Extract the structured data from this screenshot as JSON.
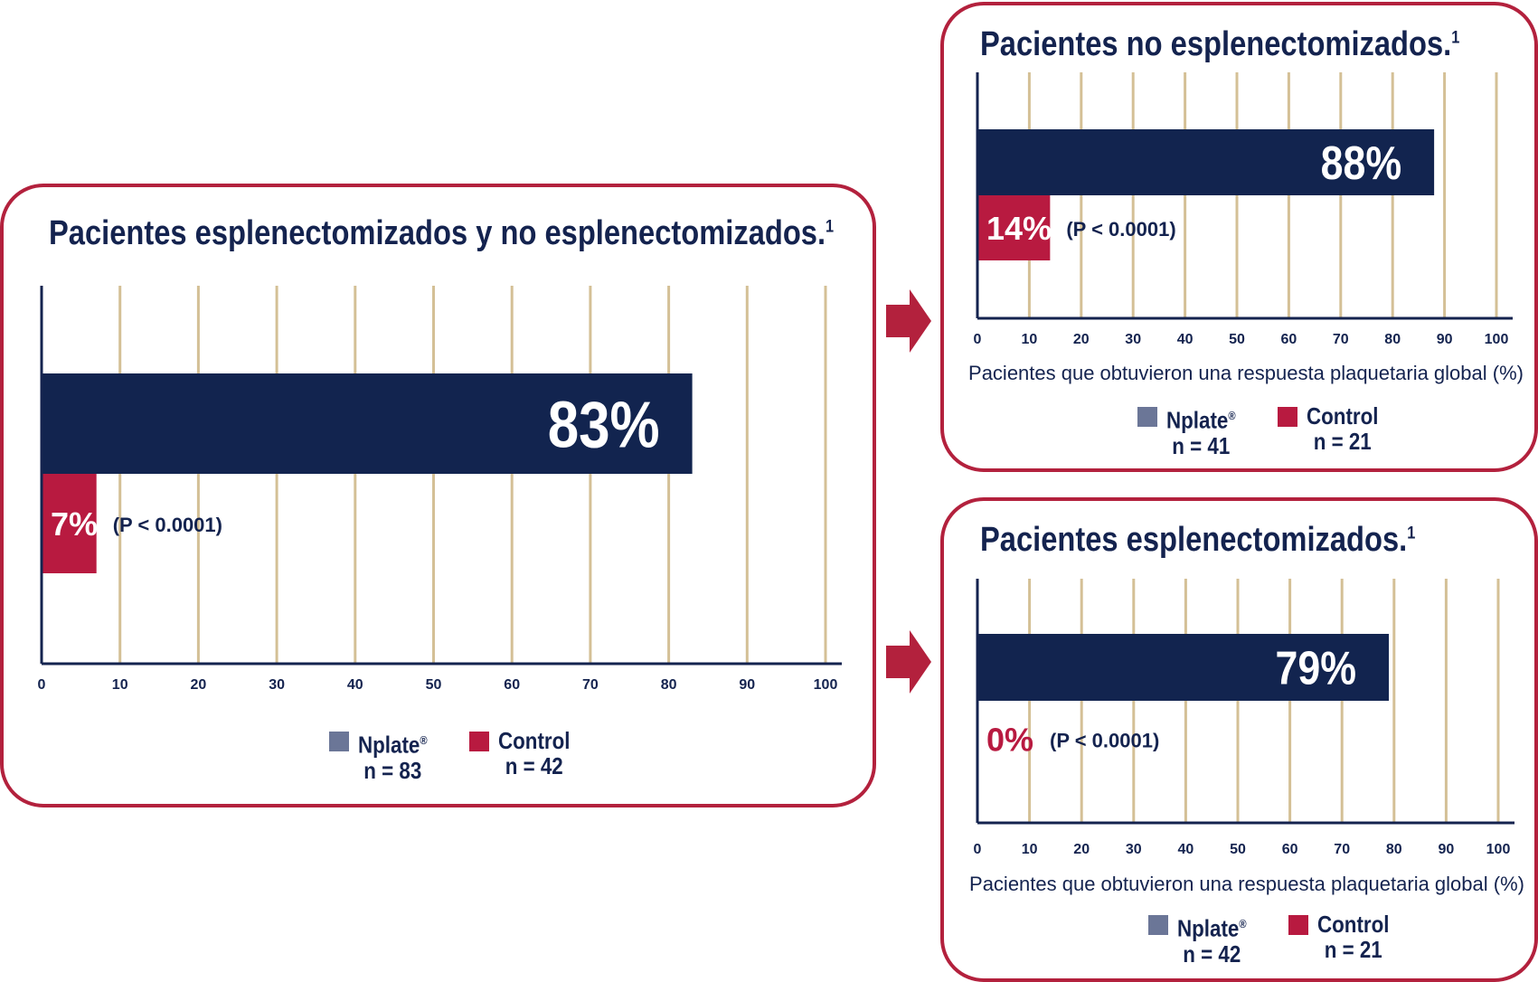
{
  "colors": {
    "nplate": "#12244f",
    "control": "#b81a40",
    "grid": "#d4c096",
    "axis": "#14234f",
    "border": "#b3213d",
    "legend_nplate": "#6b7697"
  },
  "icons": {
    "arrow": "arrow-right-icon"
  },
  "charts": [
    {
      "title": "Pacientes esplenectomizados y no esplenectomizados.",
      "title_sup": "1",
      "pvalue": "(P < 0.0001)",
      "legend": [
        {
          "name": "Nplate",
          "mark": "®",
          "n": "n = 83"
        },
        {
          "name": "Control",
          "mark": "",
          "n": "n = 42"
        }
      ]
    },
    {
      "title": "Pacientes no esplenectomizados.",
      "title_sup": "1",
      "pvalue": "(P < 0.0001)",
      "xlabel": "Pacientes que obtuvieron una respuesta plaquetaria global (%)",
      "legend": [
        {
          "name": "Nplate",
          "mark": "®",
          "n": "n = 41"
        },
        {
          "name": "Control",
          "mark": "",
          "n": "n = 21"
        }
      ]
    },
    {
      "title": "Pacientes esplenectomizados.",
      "title_sup": "1",
      "pvalue": "(P < 0.0001)",
      "xlabel": "Pacientes que obtuvieron una respuesta plaquetaria global (%)",
      "legend": [
        {
          "name": "Nplate",
          "mark": "®",
          "n": "n = 42"
        },
        {
          "name": "Control",
          "mark": "",
          "n": "n = 21"
        }
      ]
    }
  ],
  "chart_data": [
    {
      "type": "bar",
      "orientation": "horizontal",
      "title": "Pacientes esplenectomizados y no esplenectomizados.",
      "categories": [
        "Nplate",
        "Control"
      ],
      "values": [
        83,
        7
      ],
      "value_labels": [
        "83%",
        "7%"
      ],
      "xlim": [
        0,
        100
      ],
      "xticks": [
        0,
        10,
        20,
        30,
        40,
        50,
        60,
        70,
        80,
        90,
        100
      ],
      "grid": true
    },
    {
      "type": "bar",
      "orientation": "horizontal",
      "title": "Pacientes no esplenectomizados.",
      "xlabel": "Pacientes que obtuvieron una respuesta plaquetaria global (%)",
      "categories": [
        "Nplate",
        "Control"
      ],
      "values": [
        88,
        14
      ],
      "value_labels": [
        "88%",
        "14%"
      ],
      "xlim": [
        0,
        100
      ],
      "xticks": [
        0,
        10,
        20,
        30,
        40,
        50,
        60,
        70,
        80,
        90,
        100
      ],
      "grid": true
    },
    {
      "type": "bar",
      "orientation": "horizontal",
      "title": "Pacientes esplenectomizados.",
      "xlabel": "Pacientes que obtuvieron una respuesta plaquetaria global (%)",
      "categories": [
        "Nplate",
        "Control"
      ],
      "values": [
        79,
        0
      ],
      "value_labels": [
        "79%",
        "0%"
      ],
      "xlim": [
        0,
        100
      ],
      "xticks": [
        0,
        10,
        20,
        30,
        40,
        50,
        60,
        70,
        80,
        90,
        100
      ],
      "grid": true
    }
  ]
}
